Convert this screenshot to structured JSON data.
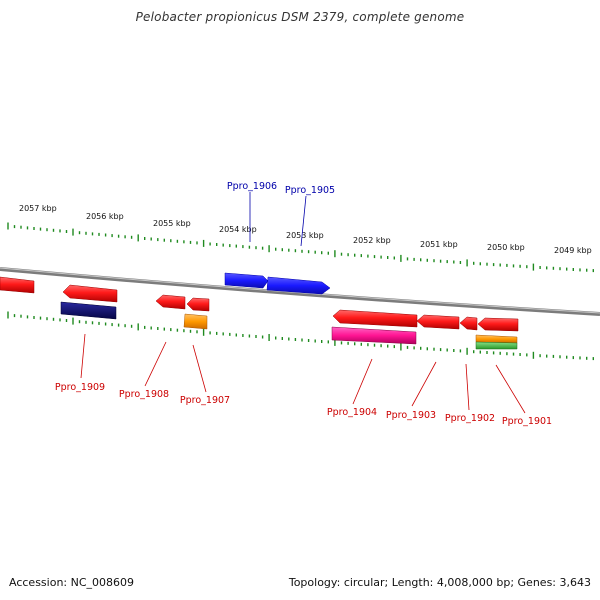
{
  "title": "Pelobacter propionicus DSM 2379, complete genome",
  "footer": {
    "accession": "Accession: NC_008609",
    "summary": "Topology: circular; Length: 4,008,000 bp; Genes: 3,643"
  },
  "colors": {
    "backbone": "#8c8c8c",
    "ticks": "#1f8a1f",
    "forward_gene": "#1a1aff",
    "reverse_gene": "#ff1a1a",
    "forward_label": "#0000aa",
    "reverse_label": "#cc0000",
    "navy": "#0b0b70",
    "orange": "#ff9900",
    "magenta": "#ff1493",
    "green": "#33bb33"
  },
  "scale": {
    "ticks": [
      {
        "label": "2057 kbp"
      },
      {
        "label": "2056 kbp"
      },
      {
        "label": "2055 kbp"
      },
      {
        "label": "2054 kbp"
      },
      {
        "label": "2053 kbp"
      },
      {
        "label": "2052 kbp"
      },
      {
        "label": "2051 kbp"
      },
      {
        "label": "2050 kbp"
      },
      {
        "label": "2049 kbp"
      }
    ]
  },
  "genes": [
    {
      "id": "Ppro_1906",
      "strand": "forward",
      "color": "forward_gene"
    },
    {
      "id": "Ppro_1905",
      "strand": "forward",
      "color": "forward_gene"
    },
    {
      "id": "Ppro_1909",
      "strand": "reverse",
      "color": "reverse_gene",
      "feature": "navy"
    },
    {
      "id": "Ppro_1908",
      "strand": "reverse",
      "color": "reverse_gene"
    },
    {
      "id": "Ppro_1907",
      "strand": "reverse",
      "color": "reverse_gene",
      "feature": "orange"
    },
    {
      "id": "Ppro_1904",
      "strand": "reverse",
      "color": "reverse_gene",
      "feature": "magenta"
    },
    {
      "id": "Ppro_1903",
      "strand": "reverse",
      "color": "reverse_gene"
    },
    {
      "id": "Ppro_1902",
      "strand": "reverse",
      "color": "reverse_gene"
    },
    {
      "id": "Ppro_1901",
      "strand": "reverse",
      "color": "reverse_gene",
      "feature": "orange-green"
    }
  ]
}
